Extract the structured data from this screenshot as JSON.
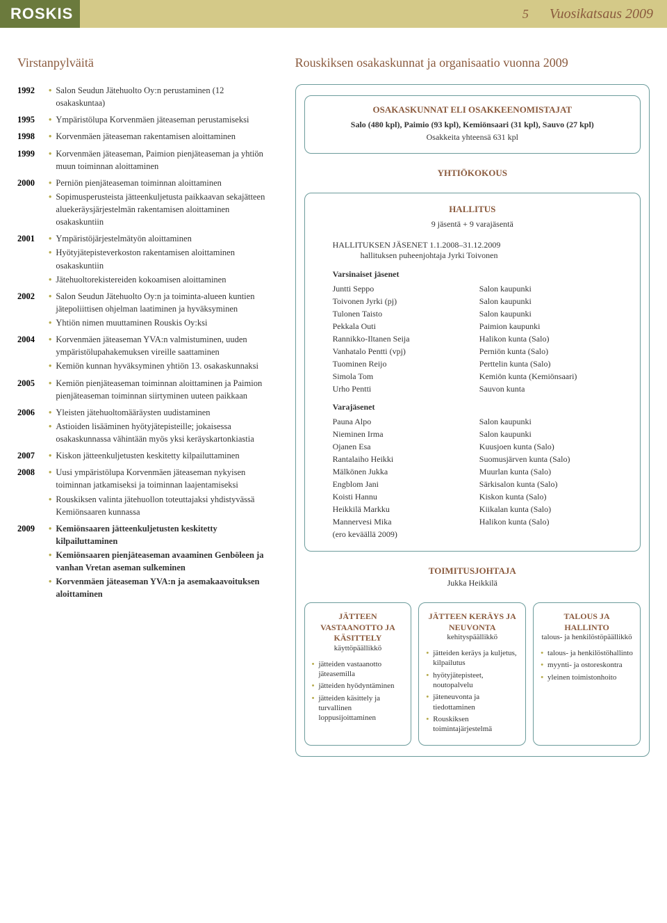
{
  "header": {
    "logo_ro": "RO",
    "logo_skis": "SKIS",
    "page": "5",
    "title": "Vuosikatsaus 2009"
  },
  "left": {
    "title": "Virstanpylväitä",
    "timeline": [
      {
        "year": "1992",
        "items": [
          {
            "text": "Salon Seudun Jätehuolto Oy:n perustaminen (12 osakaskuntaa)"
          }
        ]
      },
      {
        "year": "1995",
        "items": [
          {
            "text": "Ympäristölupa Korvenmäen jäteaseman perustamiseksi"
          }
        ]
      },
      {
        "year": "1998",
        "items": [
          {
            "text": "Korvenmäen jäteaseman rakentamisen aloittaminen"
          }
        ]
      },
      {
        "year": "1999",
        "items": [
          {
            "text": "Korvenmäen jäteaseman, Paimion pienjäteaseman ja yhtiön muun toiminnan aloittaminen"
          }
        ]
      },
      {
        "year": "2000",
        "items": [
          {
            "text": "Perniön pienjäteaseman toiminnan aloittaminen"
          },
          {
            "text": "Sopimusperusteista jätteenkuljetusta paikkaavan sekajätteen aluekeräysjärjestelmän rakentamisen aloittaminen osakaskuntiin"
          }
        ]
      },
      {
        "year": "2001",
        "items": [
          {
            "text": "Ympäristöjärjestelmätyön aloittaminen"
          },
          {
            "text": "Hyötyjätepisteverkoston rakentamisen aloittaminen osakaskuntiin"
          },
          {
            "text": "Jätehuoltorekistereiden kokoamisen aloittaminen"
          }
        ]
      },
      {
        "year": "2002",
        "items": [
          {
            "text": "Salon Seudun Jätehuolto Oy:n ja toiminta-alueen kuntien jätepoliittisen ohjelman laatiminen ja hyväksyminen"
          },
          {
            "text": "Yhtiön nimen muuttaminen Rouskis Oy:ksi"
          }
        ]
      },
      {
        "year": "2004",
        "items": [
          {
            "text": "Korvenmäen jäteaseman YVA:n valmistuminen, uuden ympäristölupahakemuksen vireille saattaminen"
          },
          {
            "text": "Kemiön kunnan hyväksyminen yhtiön 13. osakaskunnaksi"
          }
        ]
      },
      {
        "year": "2005",
        "items": [
          {
            "text": "Kemiön pienjäteaseman toiminnan aloittaminen ja Paimion pienjäteaseman toiminnan siirtyminen uuteen paikkaan"
          }
        ]
      },
      {
        "year": "2006",
        "items": [
          {
            "text": "Yleisten jätehuoltomääräysten uudistaminen"
          },
          {
            "text": "Astioiden lisääminen hyötyjätepisteille; jokaisessa osakaskunnassa vähintään myös yksi keräyskartonkiastia"
          }
        ]
      },
      {
        "year": "2007",
        "items": [
          {
            "text": "Kiskon jätteenkuljetusten keskitetty kilpailuttaminen"
          }
        ]
      },
      {
        "year": "2008",
        "items": [
          {
            "text": "Uusi ympäristölupa Korvenmäen jäteaseman nykyisen toiminnan jatkamiseksi ja toiminnan laajentamiseksi"
          },
          {
            "text": "Rouskiksen valinta jätehuollon toteuttajaksi yhdistyvässä Kemiönsaaren kunnassa"
          }
        ]
      },
      {
        "year": "2009",
        "items": [
          {
            "text": "Kemiönsaaren jätteenkuljetusten keskitetty kilpailuttaminen",
            "bold": true
          },
          {
            "text": "Kemiönsaaren pienjäteaseman avaaminen Genböleen ja vanhan Vretan aseman sulkeminen",
            "bold": true
          },
          {
            "text": "Korvenmäen jäteaseman YVA:n ja asemakaavoituksen aloittaminen",
            "bold": true
          }
        ]
      }
    ]
  },
  "right": {
    "title": "Rouskiksen osakaskunnat ja organisaatio vuonna 2009",
    "shareholders": {
      "title": "OSAKASKUNNAT ELI OSAKKEENOMISTAJAT",
      "row1": "Salo (480 kpl), Paimio (93 kpl), Kemiönsaari (31 kpl), Sauvo (27 kpl)",
      "row2": "Osakkeita yhteensä 631 kpl"
    },
    "yhtiokokous": "YHTIÖKOKOUS",
    "hallitus": {
      "title": "HALLITUS",
      "subtitle": "9 jäsentä + 9 varajäsentä",
      "period": "HALLITUKSEN JÄSENET 1.1.2008–31.12.2009",
      "chair": "hallituksen puheenjohtaja Jyrki Toivonen",
      "regular_title": "Varsinaiset jäsenet",
      "regular": [
        {
          "name": "Juntti Seppo",
          "org": "Salon kaupunki"
        },
        {
          "name": "Toivonen Jyrki (pj)",
          "org": "Salon kaupunki"
        },
        {
          "name": "Tulonen Taisto",
          "org": "Salon kaupunki"
        },
        {
          "name": "Pekkala Outi",
          "org": "Paimion kaupunki"
        },
        {
          "name": "Rannikko-Iltanen Seija",
          "org": "Halikon kunta (Salo)"
        },
        {
          "name": "Vanhatalo Pentti (vpj)",
          "org": "Perniön kunta (Salo)"
        },
        {
          "name": "Tuominen Reijo",
          "org": "Perttelin kunta (Salo)"
        },
        {
          "name": "Simola Tom",
          "org": "Kemiön kunta (Kemiönsaari)"
        },
        {
          "name": "Urho Pentti",
          "org": "Sauvon kunta"
        }
      ],
      "deputy_title": "Varajäsenet",
      "deputy": [
        {
          "name": "Pauna Alpo",
          "org": "Salon kaupunki"
        },
        {
          "name": "Nieminen Irma",
          "org": "Salon kaupunki"
        },
        {
          "name": "Ojanen Esa",
          "org": "Kuusjoen kunta (Salo)"
        },
        {
          "name": "Rantalaiho Heikki",
          "org": "Suomusjärven kunta (Salo)"
        },
        {
          "name": "Mälkönen Jukka",
          "org": "Muurlan kunta (Salo)"
        },
        {
          "name": "Engblom Jani",
          "org": "Särkisalon kunta (Salo)"
        },
        {
          "name": "Koisti Hannu",
          "org": "Kiskon kunta (Salo)"
        },
        {
          "name": "Heikkilä Markku",
          "org": "Kiikalan kunta (Salo)"
        },
        {
          "name": "Mannervesi Mika",
          "org": "Halikon kunta (Salo)"
        },
        {
          "name": "(ero keväällä 2009)",
          "org": ""
        }
      ]
    },
    "ceo": {
      "title": "TOIMITUSJOHTAJA",
      "name": "Jukka Heikkilä"
    },
    "departments": [
      {
        "title": "JÄTTEEN VASTAANOTTO JA KÄSITTELY",
        "subtitle": "käyttöpäällikkö",
        "items": [
          "jätteiden vastaanotto jäteasemilla",
          "jätteiden hyödyntäminen",
          "jätteiden käsittely ja turvallinen loppusijoittaminen"
        ]
      },
      {
        "title": "JÄTTEEN KERÄYS JA NEUVONTA",
        "subtitle": "kehityspäällikkö",
        "items": [
          "jätteiden keräys ja kuljetus, kilpailutus",
          "hyötyjätepisteet, noutopalvelu",
          "jäteneuvonta ja tiedottaminen",
          "Rouskiksen toimintajärjestelmä"
        ]
      },
      {
        "title": "TALOUS JA HALLINTO",
        "subtitle": "talous- ja henkilöstöpäällikkö",
        "items": [
          "talous- ja henkilöstöhallinto",
          "myynti- ja ostoreskontra",
          "yleinen toimistonhoito"
        ]
      }
    ]
  }
}
